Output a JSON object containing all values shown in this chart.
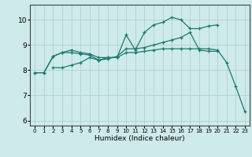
{
  "background_color": "#ceeaea",
  "line_color": "#1a7a6e",
  "grid_color": "#aacccc",
  "xlabel": "Humidex (Indice chaleur)",
  "xlim": [
    -0.5,
    23.5
  ],
  "ylim": [
    5.8,
    10.6
  ],
  "yticks": [
    6,
    7,
    8,
    9,
    10
  ],
  "xticks": [
    0,
    1,
    2,
    3,
    4,
    5,
    6,
    7,
    8,
    9,
    10,
    11,
    12,
    13,
    14,
    15,
    16,
    17,
    18,
    19,
    20,
    21,
    22,
    23
  ],
  "lines": [
    {
      "x": [
        0,
        1,
        2,
        3,
        4,
        5,
        6,
        7,
        8,
        9,
        10,
        11,
        12,
        13,
        14,
        15,
        16,
        17,
        18,
        19,
        20
      ],
      "y": [
        7.9,
        7.9,
        8.55,
        8.7,
        8.8,
        8.7,
        8.65,
        8.5,
        8.5,
        8.5,
        9.4,
        8.8,
        9.5,
        9.8,
        9.9,
        10.1,
        10.0,
        9.65,
        9.65,
        9.75,
        9.8
      ]
    },
    {
      "x": [
        0,
        1,
        2,
        3,
        4,
        5,
        6,
        7,
        8,
        9,
        10,
        11,
        12,
        13,
        14,
        15,
        16,
        17,
        18,
        19,
        20
      ],
      "y": [
        7.9,
        7.9,
        8.55,
        8.7,
        8.7,
        8.65,
        8.6,
        8.4,
        8.45,
        8.55,
        8.85,
        8.85,
        8.9,
        9.0,
        9.1,
        9.2,
        9.3,
        9.5,
        8.8,
        8.75,
        8.75
      ]
    },
    {
      "x": [
        2,
        3,
        4,
        5,
        6,
        7,
        8,
        9,
        10,
        11,
        12,
        13,
        14,
        15,
        16,
        17,
        18,
        19,
        20,
        21,
        22,
        23
      ],
      "y": [
        8.1,
        8.1,
        8.2,
        8.3,
        8.5,
        8.4,
        8.5,
        8.5,
        8.7,
        8.7,
        8.75,
        8.8,
        8.85,
        8.85,
        8.85,
        8.85,
        8.85,
        8.85,
        8.8,
        8.3,
        7.35,
        6.35
      ]
    }
  ]
}
